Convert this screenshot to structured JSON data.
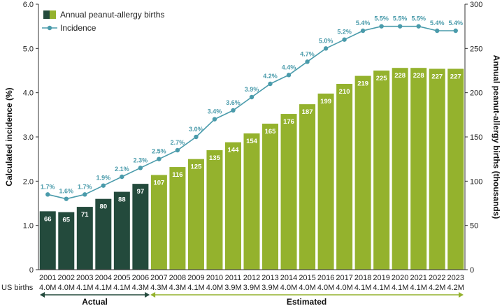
{
  "chart_data": {
    "type": "bar+line",
    "categories": [
      "2001",
      "2002",
      "2003",
      "2004",
      "2005",
      "2006",
      "2007",
      "2008",
      "2009",
      "2010",
      "2011",
      "2012",
      "2013",
      "2014",
      "2015",
      "2016",
      "2017",
      "2018",
      "2019",
      "2020",
      "2021",
      "2022",
      "2023"
    ],
    "us_births_label": "US births",
    "us_births": [
      "4.0M",
      "4.0M",
      "4.1M",
      "4.1M",
      "4.1M",
      "4.3M",
      "4.3M",
      "4.3M",
      "4.1M",
      "4.0M",
      "3.9M",
      "3.9M",
      "3.9M",
      "4.0M",
      "4.0M",
      "4.0M",
      "4.0M",
      "4.1M",
      "4.1M",
      "4.1M",
      "4.1M",
      "4.2M",
      "4.2M"
    ],
    "series": [
      {
        "name": "Annual peanut-allergy births",
        "type": "bar",
        "axis": "right",
        "values": [
          66,
          65,
          71,
          80,
          88,
          97,
          107,
          116,
          125,
          135,
          144,
          154,
          165,
          176,
          187,
          199,
          210,
          219,
          225,
          228,
          228,
          227,
          227
        ],
        "labels": [
          "66",
          "65",
          "71",
          "80",
          "88",
          "97",
          "107",
          "116",
          "125",
          "135",
          "144",
          "154",
          "165",
          "176",
          "187",
          "199",
          "210",
          "219",
          "225",
          "228",
          "228",
          "227",
          "227"
        ],
        "color_actual": "#234a3c",
        "color_estimated": "#94b22d"
      },
      {
        "name": "Incidence",
        "type": "line",
        "axis": "left",
        "values": [
          1.7,
          1.6,
          1.7,
          1.9,
          2.1,
          2.3,
          2.5,
          2.7,
          3.0,
          3.4,
          3.6,
          3.9,
          4.2,
          4.4,
          4.7,
          5.0,
          5.2,
          5.4,
          5.5,
          5.5,
          5.5,
          5.4,
          5.4
        ],
        "labels": [
          "1.7%",
          "1.6%",
          "1.7%",
          "1.9%",
          "2.1%",
          "2.3%",
          "2.5%",
          "2.7%",
          "3.0%",
          "3.4%",
          "3.6%",
          "3.9%",
          "4.2%",
          "4.4%",
          "4.7%",
          "5.0%",
          "5.2%",
          "5.4%",
          "5.5%",
          "5.5%",
          "5.5%",
          "5.4%",
          "5.4%"
        ],
        "color": "#4a9bab"
      }
    ],
    "left_axis": {
      "label": "Calculated incidence (%)",
      "range": [
        0,
        6
      ],
      "ticks": [
        0,
        1,
        2,
        3,
        4,
        5,
        6
      ],
      "tick_labels": [
        "0",
        "1.0",
        "2.0",
        "3.0",
        "4.0",
        "5.0",
        "6.0"
      ]
    },
    "right_axis": {
      "label": "Annual peanut-allergy births (thousands)",
      "range": [
        0,
        300
      ],
      "ticks": [
        0,
        50,
        100,
        150,
        200,
        250,
        300
      ],
      "tick_labels": [
        "0",
        "50",
        "100",
        "150",
        "200",
        "250",
        "300"
      ]
    },
    "actual_count": 6,
    "periods": [
      {
        "label": "Actual",
        "color": "#234a3c"
      },
      {
        "label": "Estimated",
        "color": "#94b22d"
      }
    ],
    "legend": {
      "position": "top-left",
      "bar_label": "Annual peanut-allergy births",
      "line_label": "Incidence"
    }
  }
}
